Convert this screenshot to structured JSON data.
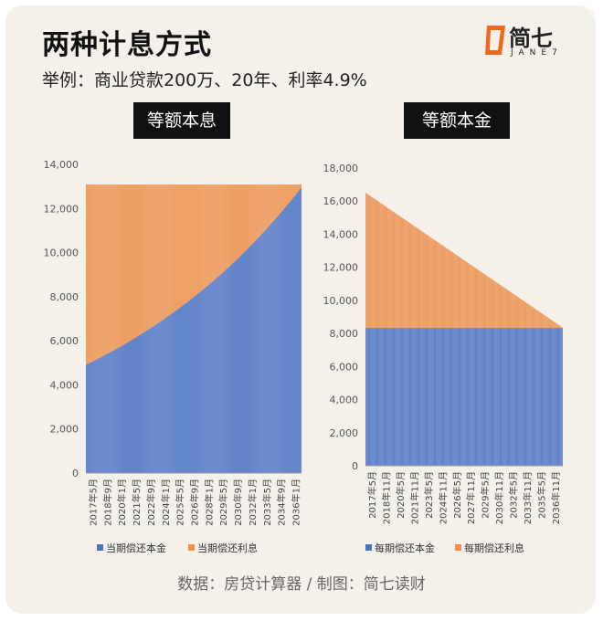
{
  "header": {
    "title": "两种计息方式",
    "subtitle": "举例：商业贷款200万、20年、利率4.9%",
    "logo_text": "简七",
    "logo_sub": "JANE7"
  },
  "colors": {
    "principal": "#4a72c4",
    "interest": "#ed914d",
    "background": "#f5f1ea",
    "label_box": "#111111"
  },
  "chart_data": [
    {
      "type": "bar",
      "stacked": true,
      "title": "等额本息",
      "ylim": [
        0,
        14000
      ],
      "yticks": [
        "0",
        "2,000",
        "4,000",
        "6,000",
        "8,000",
        "10,000",
        "12,000",
        "14,000"
      ],
      "x_tick_labels": [
        "2017年5月",
        "2018年9月",
        "2020年1月",
        "2021年5月",
        "2022年9月",
        "2024年1月",
        "2025年5月",
        "2026年9月",
        "2028年1月",
        "2029年5月",
        "2030年9月",
        "2032年1月",
        "2033年5月",
        "2034年9月",
        "2036年1月"
      ],
      "x_range": [
        "2017年5月",
        "2037年4月"
      ],
      "months": 240,
      "monthly_payment": 13089,
      "principal_first": 4922,
      "principal_last": 13036,
      "interest_first": 8167,
      "interest_last": 53,
      "legend": [
        "当期偿还本金",
        "当期偿还利息"
      ],
      "legend_position": "bottom"
    },
    {
      "type": "bar",
      "stacked": true,
      "title": "等额本金",
      "ylim": [
        0,
        18000
      ],
      "yticks": [
        "0",
        "2,000",
        "4,000",
        "6,000",
        "8,000",
        "10,000",
        "12,000",
        "14,000",
        "16,000",
        "18,000"
      ],
      "x_tick_labels": [
        "2017年5月",
        "2018年11月",
        "2020年5月",
        "2021年11月",
        "2023年5月",
        "2024年11月",
        "2026年5月",
        "2027年11月",
        "2029年5月",
        "2030年11月",
        "2032年5月",
        "2033年11月",
        "2035年5月",
        "2036年11月"
      ],
      "x_range": [
        "2017年5月",
        "2037年4月"
      ],
      "months": 240,
      "principal_per_month": 8333,
      "interest_first": 8167,
      "interest_last": 34,
      "legend": [
        "每期偿还本金",
        "每期偿还利息"
      ],
      "legend_position": "bottom"
    }
  ],
  "footer": "数据：房贷计算器 / 制图：简七读财"
}
